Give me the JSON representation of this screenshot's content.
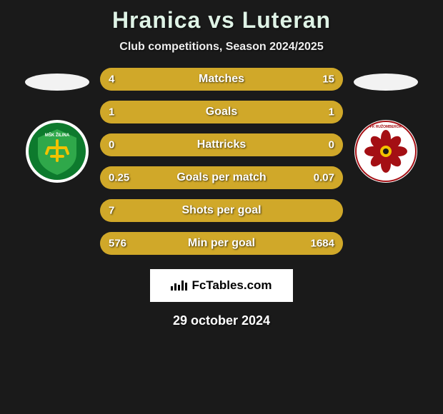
{
  "title": {
    "player1": "Hranica",
    "vs": "vs",
    "player2": "Luteran",
    "color": "#dff3e6"
  },
  "subtitle": "Club competitions, Season 2024/2025",
  "player_shapes": {
    "left_color": "#f2f2f2",
    "right_color": "#f2f2f2"
  },
  "clubs": {
    "left": {
      "name": "MSK Zilina",
      "bg": "#ffffff",
      "ring": "#0d7a2d",
      "inner": "#2fa84a",
      "accent": "#f2c200"
    },
    "right": {
      "name": "MFK Ruzomberok",
      "bg": "#ffffff",
      "ring": "#a40f14",
      "inner": "#ffffff",
      "accent": "#a40f14",
      "accent2": "#f2c200"
    }
  },
  "bars": {
    "track_color": "#6b5a1c",
    "left_color": "#d0a829",
    "right_color": "#d0a829",
    "text_color": "#ffffff",
    "items": [
      {
        "label": "Matches",
        "left_val": "4",
        "right_val": "15",
        "left_pct": 21,
        "right_pct": 79
      },
      {
        "label": "Goals",
        "left_val": "1",
        "right_val": "1",
        "left_pct": 50,
        "right_pct": 50
      },
      {
        "label": "Hattricks",
        "left_val": "0",
        "right_val": "0",
        "left_pct": 50,
        "right_pct": 50
      },
      {
        "label": "Goals per match",
        "left_val": "0.25",
        "right_val": "0.07",
        "left_pct": 78,
        "right_pct": 22
      },
      {
        "label": "Shots per goal",
        "left_val": "7",
        "right_val": "",
        "left_pct": 100,
        "right_pct": 0
      },
      {
        "label": "Min per goal",
        "left_val": "576",
        "right_val": "1684",
        "left_pct": 25,
        "right_pct": 75
      }
    ]
  },
  "brand": "FcTables.com",
  "date": "29 october 2024",
  "bg_color": "#1a1a1a"
}
